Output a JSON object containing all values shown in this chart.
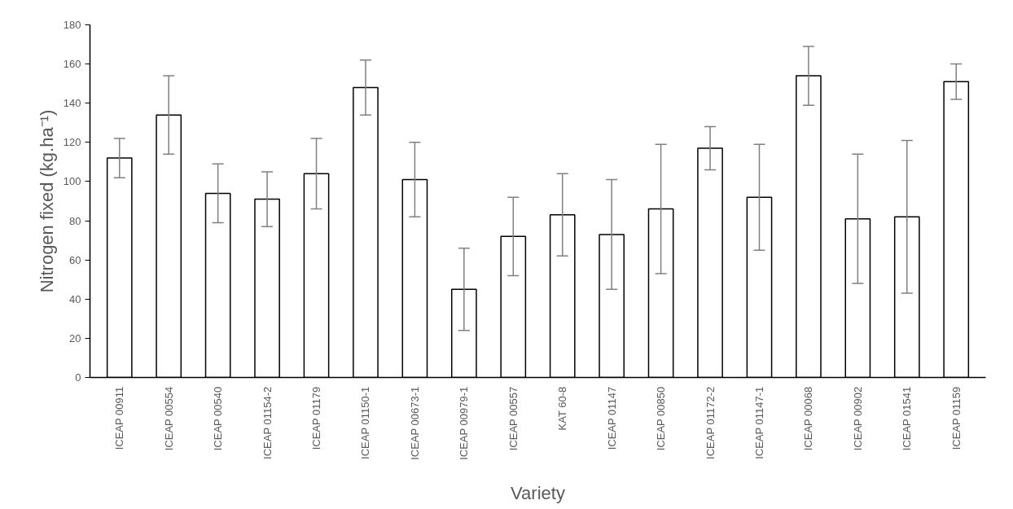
{
  "chart_data": {
    "type": "bar",
    "xlabel": "Variety",
    "ylabel": "Nitrogen fixed (kg.ha⁻¹)",
    "categories": [
      "ICEAP 00911",
      "ICEAP 00554",
      "ICEAP 00540",
      "ICEAP 01154-2",
      "ICEAP 01179",
      "ICEAP 01150-1",
      "ICEAP 00673-1",
      "ICEAP 00979-1",
      "ICEAP 00557",
      "KAT 60-8",
      "ICEAP 01147",
      "ICEAP 00850",
      "ICEAP 01172-2",
      "ICEAP 01147-1",
      "ICEAP 00068",
      "ICEAP 00902",
      "ICEAP 01541",
      "ICEAP 01159"
    ],
    "values": [
      112,
      134,
      94,
      91,
      104,
      148,
      101,
      45,
      72,
      83,
      73,
      86,
      117,
      92,
      154,
      81,
      82,
      151
    ],
    "errors": [
      10,
      20,
      15,
      14,
      18,
      14,
      19,
      21,
      20,
      21,
      28,
      33,
      11,
      27,
      15,
      33,
      39,
      9
    ],
    "color": "#ffffff",
    "ylim": [
      0,
      180
    ],
    "yticks": [
      0,
      20,
      40,
      60,
      80,
      100,
      120,
      140,
      160,
      180
    ],
    "grid": false
  }
}
